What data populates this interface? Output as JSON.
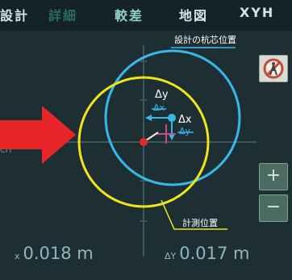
{
  "tabs": [
    {
      "label": "設計"
    },
    {
      "label": "詳細"
    },
    {
      "label": "較差"
    },
    {
      "label": "地図"
    },
    {
      "label": "XYH"
    }
  ],
  "annotations": {
    "design_label": "設計の杭芯位置",
    "measured_label": "計測位置",
    "dy_label": "Δy",
    "dx_struck_label": "Δx",
    "dx_label": "Δx",
    "dy_struck_label": "Δy"
  },
  "readouts": {
    "left_prefix": "x",
    "left_value": "0.018 m",
    "right_prefix": "ΔY",
    "right_value": "0.017 m"
  },
  "side_buttons": {
    "plus": "+",
    "minus": "−"
  },
  "colors": {
    "design_circle": "#37b8e8",
    "measured_circle": "#f2e41a",
    "arrow": "#e8262a",
    "annotation_line": "#37b8e8"
  },
  "icons": {
    "no_walk": "no-pedestrian-icon",
    "pointer": "right-arrow-icon"
  }
}
